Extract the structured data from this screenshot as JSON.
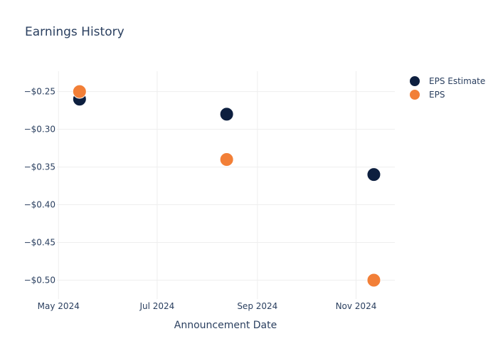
{
  "chart_data": {
    "type": "scatter",
    "title": "Earnings History",
    "xlabel": "Announcement Date",
    "ylabel": "",
    "x_ticks": [
      {
        "label": "May 2024",
        "date": "2024-05-01"
      },
      {
        "label": "Jul 2024",
        "date": "2024-07-01"
      },
      {
        "label": "Sep 2024",
        "date": "2024-09-01"
      },
      {
        "label": "Nov 2024",
        "date": "2024-11-01"
      }
    ],
    "y_ticks": [
      {
        "label": "−$0.25",
        "value": -0.25
      },
      {
        "label": "−$0.30",
        "value": -0.3
      },
      {
        "label": "−$0.35",
        "value": -0.35
      },
      {
        "label": "−$0.40",
        "value": -0.4
      },
      {
        "label": "−$0.45",
        "value": -0.45
      },
      {
        "label": "−$0.50",
        "value": -0.5
      }
    ],
    "xlim": [
      "2024-04-30",
      "2024-11-25"
    ],
    "ylim": [
      -0.525,
      -0.223
    ],
    "grid": true,
    "legend": "top-right",
    "series": [
      {
        "name": "EPS Estimate",
        "color": "#0d1f3f",
        "points": [
          {
            "date": "2024-05-14",
            "value": -0.26
          },
          {
            "date": "2024-08-13",
            "value": -0.28
          },
          {
            "date": "2024-11-12",
            "value": -0.36
          }
        ]
      },
      {
        "name": "EPS",
        "color": "#f27f37",
        "points": [
          {
            "date": "2024-05-14",
            "value": -0.25
          },
          {
            "date": "2024-08-13",
            "value": -0.34
          },
          {
            "date": "2024-11-12",
            "value": -0.5
          }
        ]
      }
    ]
  }
}
